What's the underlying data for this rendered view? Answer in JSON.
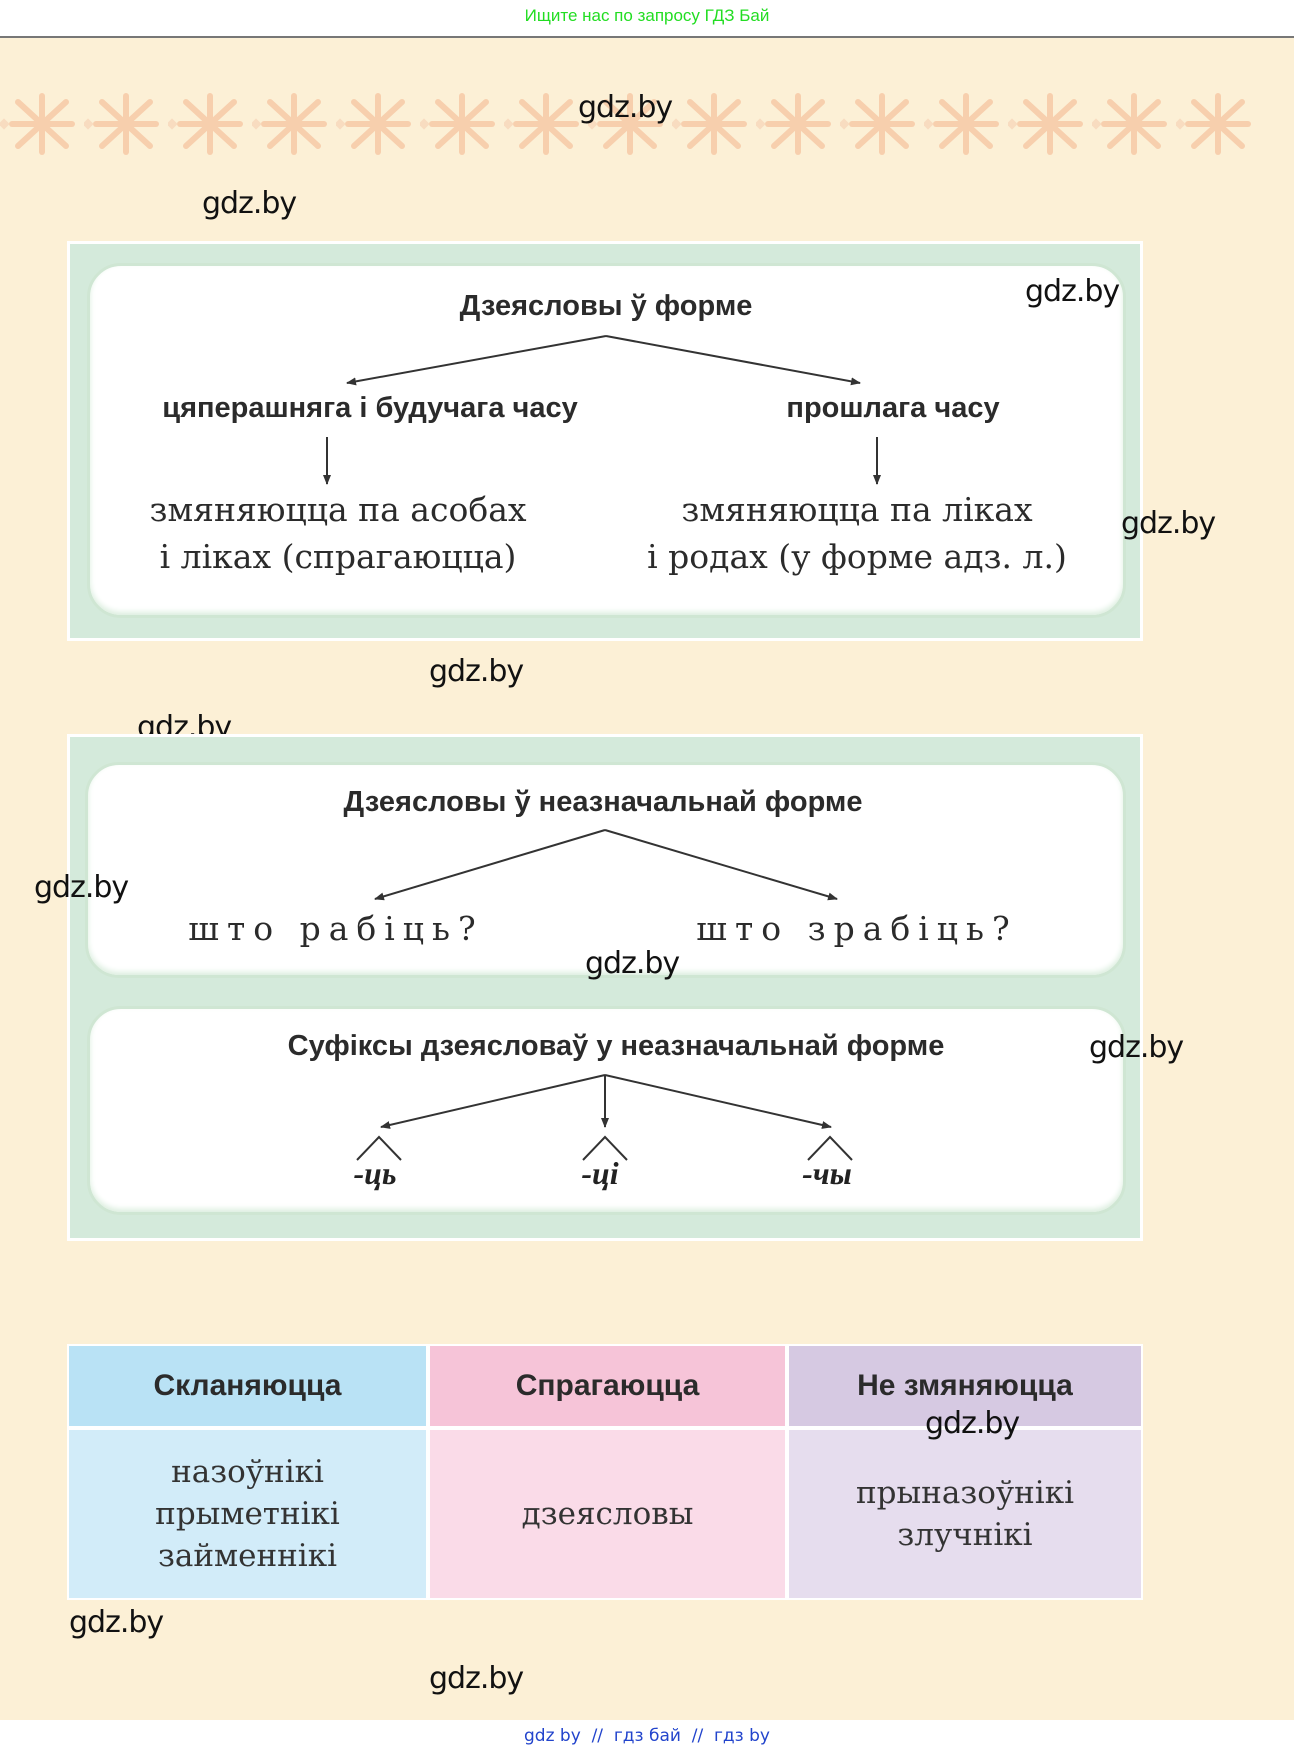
{
  "header": {
    "search_hint": "Ищите нас по запросу ГДЗ Бай"
  },
  "watermark": "gdz.by",
  "diagram1": {
    "title": "Дзеясловы ў форме",
    "left_label": "цяперашняга і будучага часу",
    "right_label": "прошлага часу",
    "left_result": [
      "змяняюцца па асобах",
      "і ліках (спрагаюцца)"
    ],
    "right_result": [
      "змяняюцца па ліках",
      "і родах (у форме адз. л.)"
    ]
  },
  "diagram2": {
    "title": "Дзеясловы ў неазначальнай форме",
    "left_question": "што рабіць?",
    "right_question": "што зрабіць?",
    "suffix_title": "Суфіксы дзеясловаў у неазначальнай форме",
    "suffixes": [
      "-ць",
      "-ці",
      "-чы"
    ]
  },
  "table": {
    "headers": [
      "Скланяюцца",
      "Спрагаюцца",
      "Не змяняюцца"
    ],
    "cells": [
      [
        "назоўнікі",
        "прыметнікі",
        "займеннікі"
      ],
      [
        "дзеясловы"
      ],
      [
        "прыназоўнікі",
        "злучнікі"
      ]
    ],
    "header_colors": [
      "#b9e2f5",
      "#f6c4d8",
      "#d6c9e2"
    ],
    "body_colors": [
      "#d2ecf9",
      "#fadbe8",
      "#e6ddee"
    ]
  },
  "footer": {
    "links": "gdz by  //  гдз бай  //  гдз by"
  },
  "colors": {
    "background": "#fcf0d6",
    "frame": "#d4eadb",
    "header_text": "#22dd22",
    "footer_text": "#2244cc"
  }
}
